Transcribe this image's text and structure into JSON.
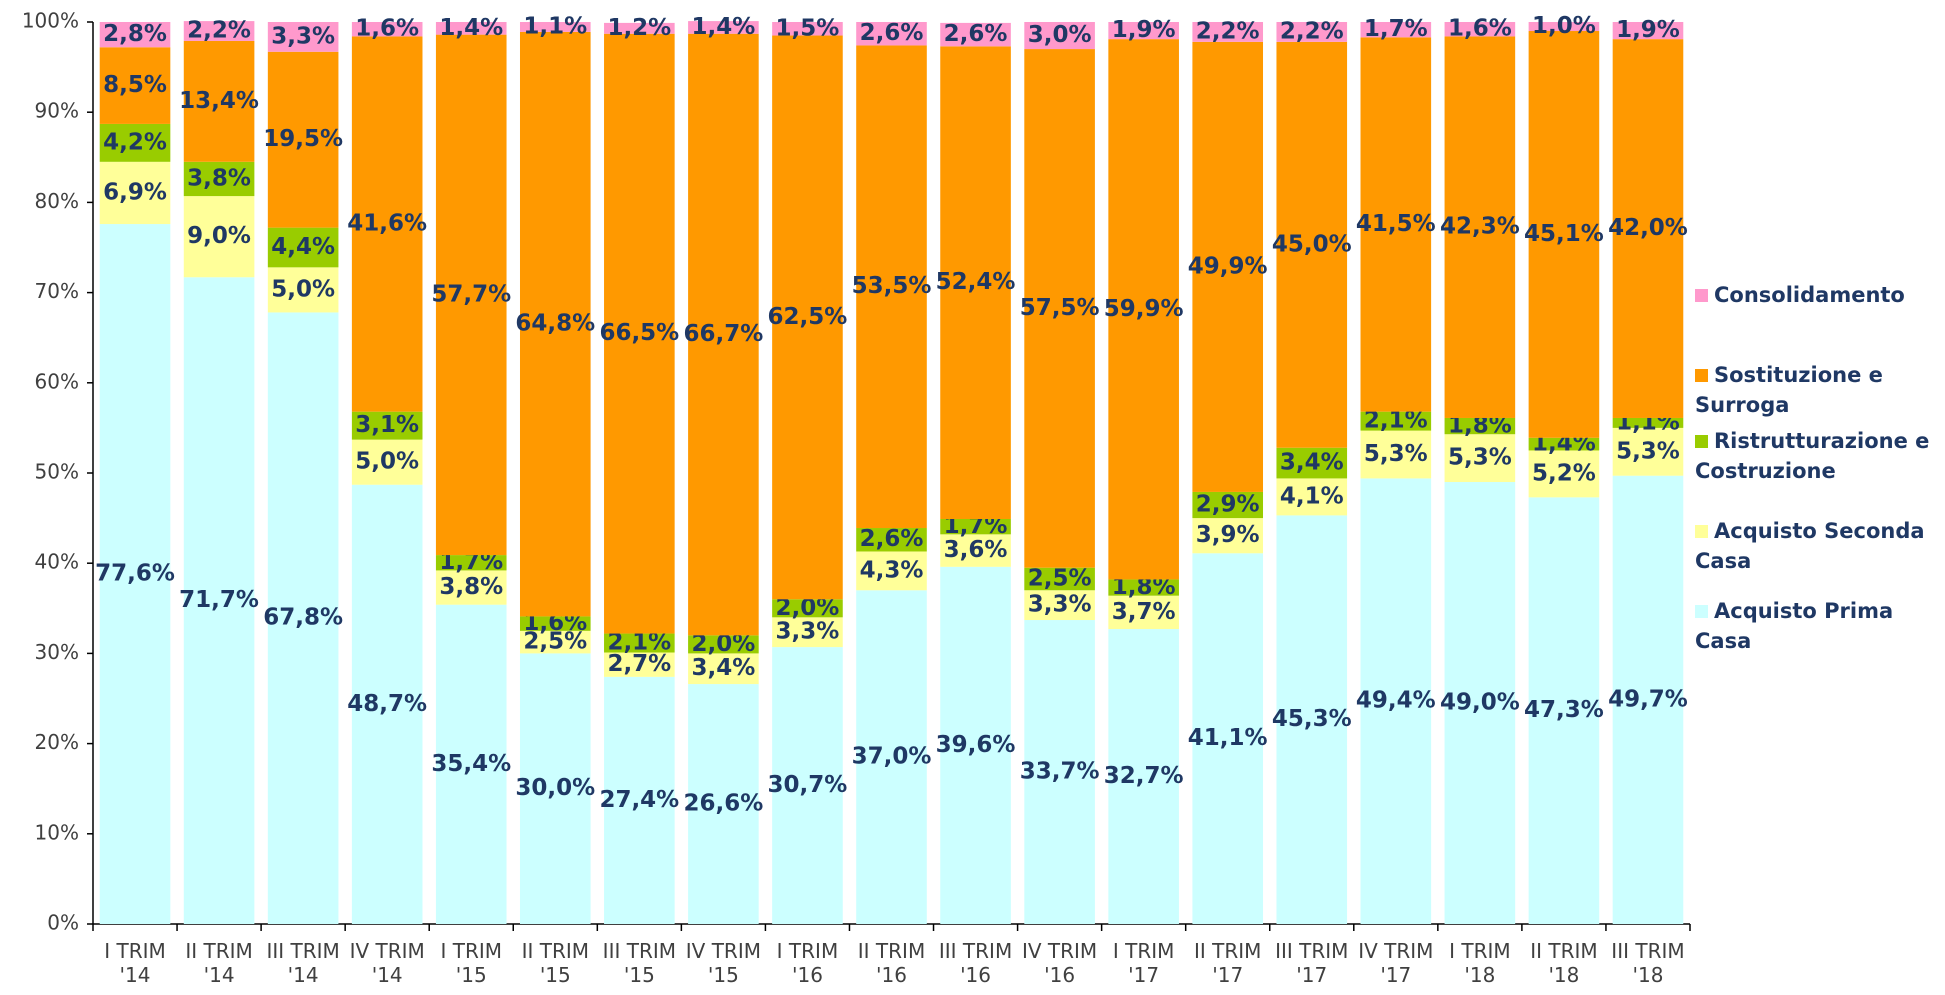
{
  "chart_data": {
    "type": "stacked_bar",
    "categories": [
      "I TRIM '14",
      "II TRIM '14",
      "III TRIM '14",
      "IV TRIM '14",
      "I TRIM '15",
      "II TRIM '15",
      "III TRIM '15",
      "IV TRIM '15",
      "I TRIM '16",
      "II TRIM '16",
      "III TRIM '16",
      "IV TRIM '16",
      "I TRIM '17",
      "II TRIM '17",
      "III TRIM '17",
      "IV TRIM '17",
      "I TRIM '18",
      "II TRIM '18",
      "III TRIM '18"
    ],
    "series": [
      {
        "name": "Acquisto Prima Casa",
        "color": "#ccffff",
        "values": [
          77.6,
          71.7,
          67.8,
          48.7,
          35.4,
          30.0,
          27.4,
          26.6,
          30.7,
          37.0,
          39.6,
          33.7,
          32.7,
          41.1,
          45.3,
          49.4,
          49.0,
          47.3,
          49.7
        ],
        "value_labels": [
          "77,6%",
          "71,7%",
          "67,8%",
          "48,7%",
          "35,4%",
          "30,0%",
          "27,4%",
          "26,6%",
          "30,7%",
          "37,0%",
          "39,6%",
          "33,7%",
          "32,7%",
          "41,1%",
          "45,3%",
          "49,4%",
          "49,0%",
          "47,3%",
          "49,7%"
        ]
      },
      {
        "name": "Acquisto Seconda Casa",
        "color": "#ffff99",
        "values": [
          6.9,
          9.0,
          5.0,
          5.0,
          3.8,
          2.5,
          2.7,
          3.4,
          3.3,
          4.3,
          3.6,
          3.3,
          3.7,
          3.9,
          4.1,
          5.3,
          5.3,
          5.2,
          5.3
        ],
        "value_labels": [
          "6,9%",
          "9,0%",
          "5,0%",
          "5,0%",
          "3,8%",
          "2,5%",
          "2,7%",
          "3,4%",
          "3,3%",
          "4,3%",
          "3,6%",
          "3,3%",
          "3,7%",
          "3,9%",
          "4,1%",
          "5,3%",
          "5,3%",
          "5,2%",
          "5,3%"
        ]
      },
      {
        "name": "Ristrutturazione e Costruzione",
        "color": "#99cc00",
        "values": [
          4.2,
          3.8,
          4.4,
          3.1,
          1.7,
          1.6,
          2.1,
          2.0,
          2.0,
          2.6,
          1.7,
          2.5,
          1.8,
          2.9,
          3.4,
          2.1,
          1.8,
          1.4,
          1.1
        ],
        "value_labels": [
          "4,2%",
          "3,8%",
          "4,4%",
          "3,1%",
          "1,7%",
          "1,6%",
          "2,1%",
          "2,0%",
          "2,0%",
          "2,6%",
          "1,7%",
          "2,5%",
          "1,8%",
          "2,9%",
          "3,4%",
          "2,1%",
          "1,8%",
          "1,4%",
          "1,1%"
        ]
      },
      {
        "name": "Sostituzione e Surroga",
        "color": "#ff9900",
        "values": [
          8.5,
          13.4,
          19.5,
          41.6,
          57.7,
          64.8,
          66.5,
          66.7,
          62.5,
          53.5,
          52.4,
          57.5,
          59.9,
          49.9,
          45.0,
          41.5,
          42.3,
          45.1,
          42.0
        ],
        "value_labels": [
          "8,5%",
          "13,4%",
          "19,5%",
          "41,6%",
          "57,7%",
          "64,8%",
          "66,5%",
          "66,7%",
          "62,5%",
          "53,5%",
          "52,4%",
          "57,5%",
          "59,9%",
          "49,9%",
          "45,0%",
          "41,5%",
          "42,3%",
          "45,1%",
          "42,0%"
        ]
      },
      {
        "name": "Consolidamento",
        "color": "#ff99cc",
        "values": [
          2.8,
          2.2,
          3.3,
          1.6,
          1.4,
          1.1,
          1.2,
          1.4,
          1.5,
          2.6,
          2.6,
          3.0,
          1.9,
          2.2,
          2.2,
          1.7,
          1.6,
          1.0,
          1.9
        ],
        "value_labels": [
          "2,8%",
          "2,2%",
          "3,3%",
          "1,6%",
          "1,4%",
          "1,1%",
          "1,2%",
          "1,4%",
          "1,5%",
          "2,6%",
          "2,6%",
          "3,0%",
          "1,9%",
          "2,2%",
          "2,2%",
          "1,7%",
          "1,6%",
          "1,0%",
          "1,9%"
        ]
      }
    ],
    "ylim": [
      0,
      100
    ],
    "yticks": [
      {
        "value": 0,
        "label": "0%"
      },
      {
        "value": 10,
        "label": "10%"
      },
      {
        "value": 20,
        "label": "20%"
      },
      {
        "value": 30,
        "label": "30%"
      },
      {
        "value": 40,
        "label": "40%"
      },
      {
        "value": 50,
        "label": "50%"
      },
      {
        "value": 60,
        "label": "60%"
      },
      {
        "value": 70,
        "label": "70%"
      },
      {
        "value": 80,
        "label": "80%"
      },
      {
        "value": 90,
        "label": "90%"
      },
      {
        "value": 100,
        "label": "100%"
      }
    ],
    "legend": "right"
  }
}
